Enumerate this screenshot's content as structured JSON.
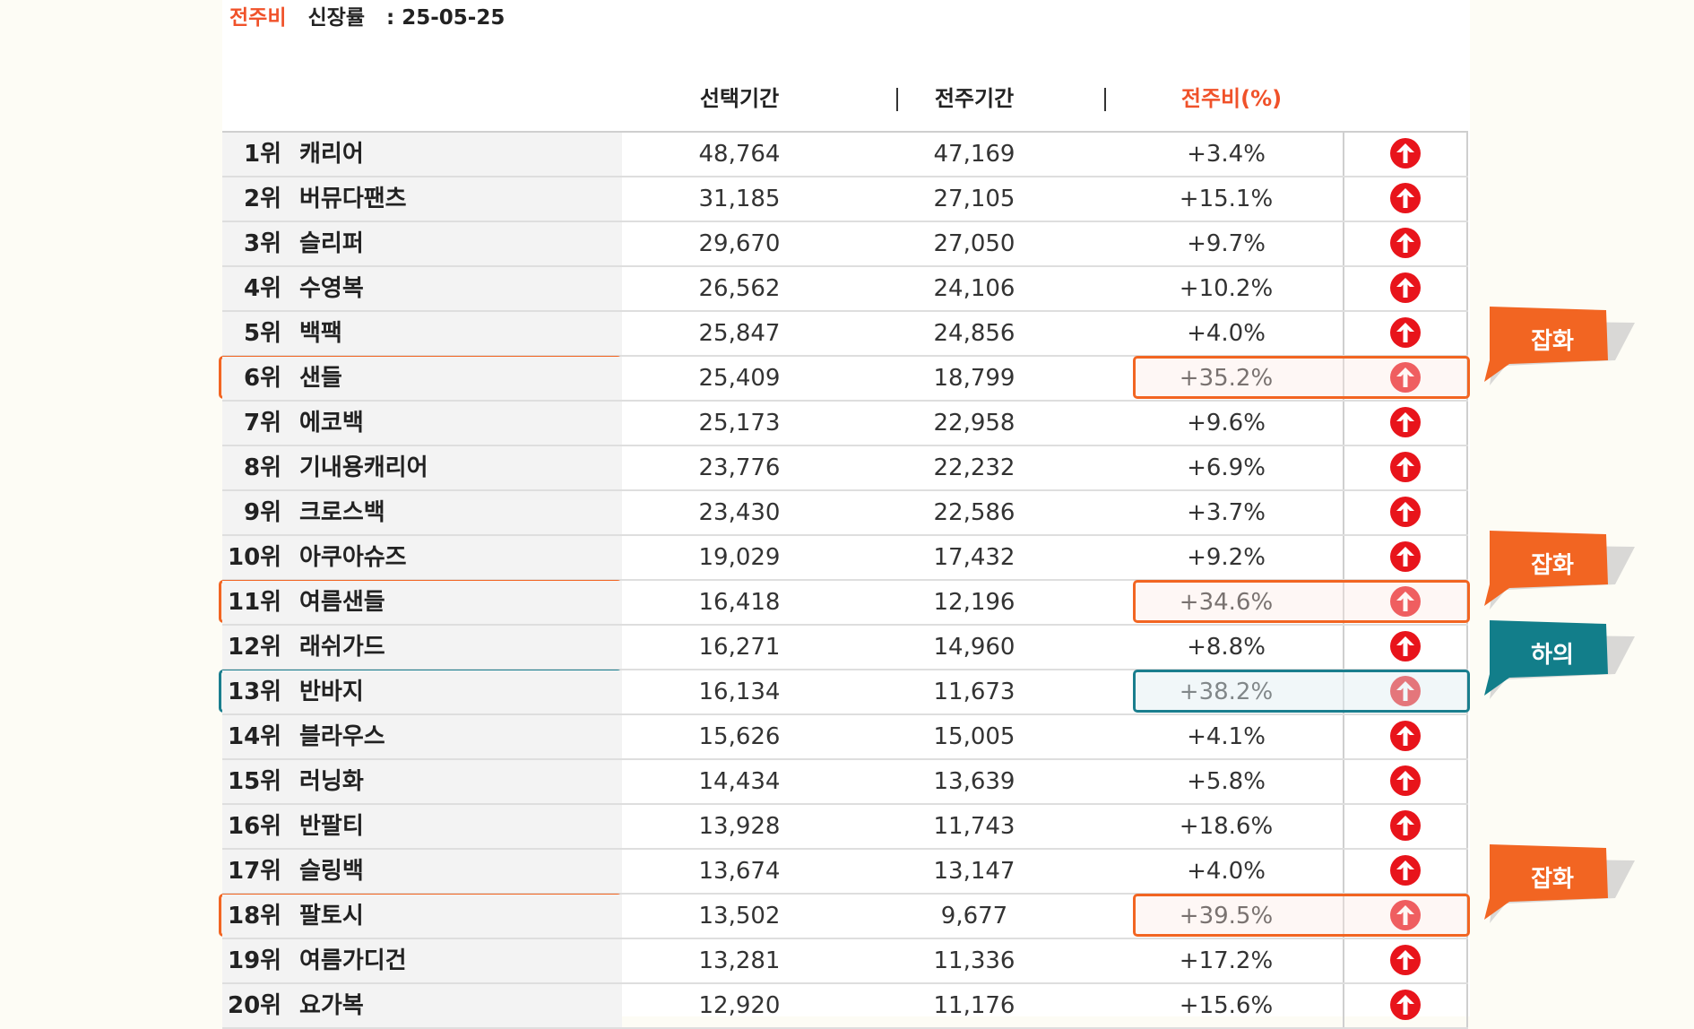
{
  "header": {
    "prefix": "전주비",
    "label": "신장률",
    "separator": ":",
    "date": "25-05-25"
  },
  "columns": {
    "selected": "선택기간",
    "previous": "전주기간",
    "change": "전주비(%)"
  },
  "rows": [
    {
      "rank": "1위",
      "name": "캐리어",
      "selected": "48,764",
      "previous": "47,169",
      "change": "+3.4%",
      "highlight": ""
    },
    {
      "rank": "2위",
      "name": "버뮤다팬츠",
      "selected": "31,185",
      "previous": "27,105",
      "change": "+15.1%",
      "highlight": ""
    },
    {
      "rank": "3위",
      "name": "슬리퍼",
      "selected": "29,670",
      "previous": "27,050",
      "change": "+9.7%",
      "highlight": ""
    },
    {
      "rank": "4위",
      "name": "수영복",
      "selected": "26,562",
      "previous": "24,106",
      "change": "+10.2%",
      "highlight": ""
    },
    {
      "rank": "5위",
      "name": "백팩",
      "selected": "25,847",
      "previous": "24,856",
      "change": "+4.0%",
      "highlight": ""
    },
    {
      "rank": "6위",
      "name": "샌들",
      "selected": "25,409",
      "previous": "18,799",
      "change": "+35.2%",
      "highlight": "orange"
    },
    {
      "rank": "7위",
      "name": "에코백",
      "selected": "25,173",
      "previous": "22,958",
      "change": "+9.6%",
      "highlight": ""
    },
    {
      "rank": "8위",
      "name": "기내용캐리어",
      "selected": "23,776",
      "previous": "22,232",
      "change": "+6.9%",
      "highlight": ""
    },
    {
      "rank": "9위",
      "name": "크로스백",
      "selected": "23,430",
      "previous": "22,586",
      "change": "+3.7%",
      "highlight": ""
    },
    {
      "rank": "10위",
      "name": "아쿠아슈즈",
      "selected": "19,029",
      "previous": "17,432",
      "change": "+9.2%",
      "highlight": ""
    },
    {
      "rank": "11위",
      "name": "여름샌들",
      "selected": "16,418",
      "previous": "12,196",
      "change": "+34.6%",
      "highlight": "orange"
    },
    {
      "rank": "12위",
      "name": "래쉬가드",
      "selected": "16,271",
      "previous": "14,960",
      "change": "+8.8%",
      "highlight": ""
    },
    {
      "rank": "13위",
      "name": "반바지",
      "selected": "16,134",
      "previous": "11,673",
      "change": "+38.2%",
      "highlight": "teal"
    },
    {
      "rank": "14위",
      "name": "블라우스",
      "selected": "15,626",
      "previous": "15,005",
      "change": "+4.1%",
      "highlight": ""
    },
    {
      "rank": "15위",
      "name": "러닝화",
      "selected": "14,434",
      "previous": "13,639",
      "change": "+5.8%",
      "highlight": ""
    },
    {
      "rank": "16위",
      "name": "반팔티",
      "selected": "13,928",
      "previous": "11,743",
      "change": "+18.6%",
      "highlight": ""
    },
    {
      "rank": "17위",
      "name": "슬링백",
      "selected": "13,674",
      "previous": "13,147",
      "change": "+4.0%",
      "highlight": ""
    },
    {
      "rank": "18위",
      "name": "팔토시",
      "selected": "13,502",
      "previous": "9,677",
      "change": "+39.5%",
      "highlight": "orange"
    },
    {
      "rank": "19위",
      "name": "여름가디건",
      "selected": "13,281",
      "previous": "11,336",
      "change": "+17.2%",
      "highlight": ""
    },
    {
      "rank": "20위",
      "name": "요가복",
      "selected": "12,920",
      "previous": "11,176",
      "change": "+15.6%",
      "highlight": ""
    }
  ],
  "callouts": [
    {
      "text": "잡화",
      "row": 5,
      "color": "#f26522"
    },
    {
      "text": "잡화",
      "row": 10,
      "color": "#f26522"
    },
    {
      "text": "하의",
      "row": 12,
      "color": "#127e8a"
    },
    {
      "text": "잡화",
      "row": 17,
      "color": "#f26522"
    }
  ],
  "icons": {
    "trend": "arrow-up-circle-icon",
    "arrow_color": "#e8141b"
  },
  "colors": {
    "accent": "#f0522a",
    "highlight_orange": "#f26522",
    "highlight_teal": "#1a7e8e"
  }
}
